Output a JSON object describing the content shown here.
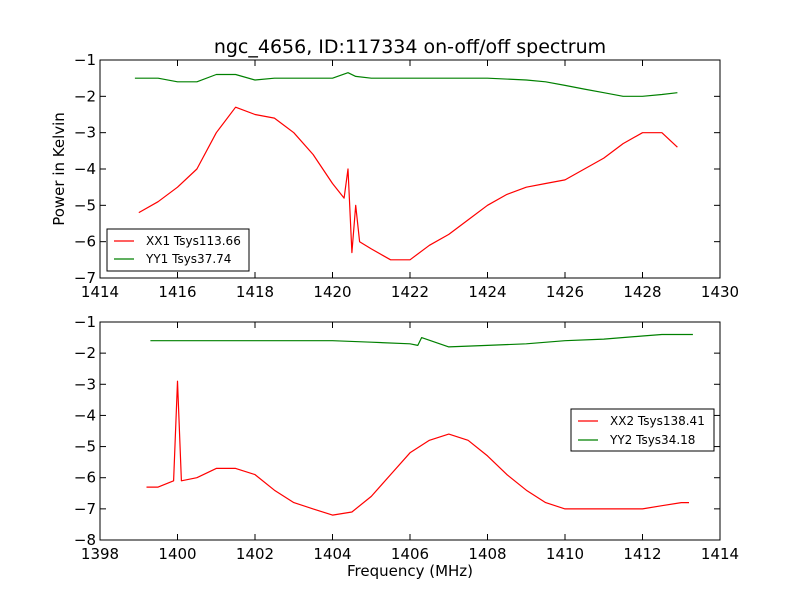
{
  "chart_data": [
    {
      "type": "line",
      "title": "ngc_4656, ID:117334 on-off/off spectrum",
      "xlabel": "",
      "ylabel": "Power in Kelvin",
      "xlim": [
        1414,
        1430
      ],
      "ylim": [
        -7,
        -1
      ],
      "xticks": [
        1414,
        1416,
        1418,
        1420,
        1422,
        1424,
        1426,
        1428,
        1430
      ],
      "yticks": [
        -7,
        -6,
        -5,
        -4,
        -3,
        -2,
        -1
      ],
      "grid": false,
      "legend_position": "lower-left",
      "series": [
        {
          "name": "XX1 Tsys113.66",
          "color": "#ff0000",
          "x": [
            1415.0,
            1415.5,
            1416.0,
            1416.5,
            1417.0,
            1417.5,
            1418.0,
            1418.5,
            1419.0,
            1419.5,
            1420.0,
            1420.3,
            1420.4,
            1420.5,
            1420.6,
            1420.7,
            1421.0,
            1421.5,
            1422.0,
            1422.5,
            1423.0,
            1423.5,
            1424.0,
            1424.5,
            1425.0,
            1425.5,
            1426.0,
            1426.5,
            1427.0,
            1427.5,
            1428.0,
            1428.5,
            1428.9
          ],
          "y": [
            -5.2,
            -4.9,
            -4.5,
            -4.0,
            -3.0,
            -2.3,
            -2.5,
            -2.6,
            -3.0,
            -3.6,
            -4.4,
            -4.8,
            -4.0,
            -6.3,
            -5.0,
            -6.0,
            -6.2,
            -6.5,
            -6.5,
            -6.1,
            -5.8,
            -5.4,
            -5.0,
            -4.7,
            -4.5,
            -4.4,
            -4.3,
            -4.0,
            -3.7,
            -3.3,
            -3.0,
            -3.0,
            -3.4
          ]
        },
        {
          "name": "YY1 Tsys37.74",
          "color": "#008000",
          "x": [
            1414.9,
            1415.5,
            1416.0,
            1416.5,
            1417.0,
            1417.5,
            1418.0,
            1418.5,
            1419.0,
            1419.5,
            1420.0,
            1420.4,
            1420.6,
            1421.0,
            1422.0,
            1423.0,
            1424.0,
            1425.0,
            1425.5,
            1426.0,
            1426.5,
            1427.0,
            1427.5,
            1428.0,
            1428.5,
            1428.9
          ],
          "y": [
            -1.5,
            -1.5,
            -1.6,
            -1.6,
            -1.4,
            -1.4,
            -1.55,
            -1.5,
            -1.5,
            -1.5,
            -1.5,
            -1.35,
            -1.45,
            -1.5,
            -1.5,
            -1.5,
            -1.5,
            -1.55,
            -1.6,
            -1.7,
            -1.8,
            -1.9,
            -2.0,
            -2.0,
            -1.95,
            -1.9
          ]
        }
      ]
    },
    {
      "type": "line",
      "title": "",
      "xlabel": "Frequency (MHz)",
      "ylabel": "",
      "xlim": [
        1398,
        1414
      ],
      "ylim": [
        -8,
        -1
      ],
      "xticks": [
        1398,
        1400,
        1402,
        1404,
        1406,
        1408,
        1410,
        1412,
        1414
      ],
      "yticks": [
        -8,
        -7,
        -6,
        -5,
        -4,
        -3,
        -2,
        -1
      ],
      "grid": false,
      "legend_position": "right",
      "series": [
        {
          "name": "XX2 Tsys138.41",
          "color": "#ff0000",
          "x": [
            1399.2,
            1399.5,
            1399.9,
            1400.0,
            1400.1,
            1400.5,
            1401.0,
            1401.5,
            1402.0,
            1402.5,
            1403.0,
            1403.5,
            1404.0,
            1404.5,
            1405.0,
            1405.5,
            1406.0,
            1406.5,
            1407.0,
            1407.5,
            1408.0,
            1408.5,
            1409.0,
            1409.5,
            1410.0,
            1410.5,
            1411.0,
            1411.5,
            1412.0,
            1412.5,
            1413.0,
            1413.2
          ],
          "y": [
            -6.3,
            -6.3,
            -6.1,
            -2.9,
            -6.1,
            -6.0,
            -5.7,
            -5.7,
            -5.9,
            -6.4,
            -6.8,
            -7.0,
            -7.2,
            -7.1,
            -6.6,
            -5.9,
            -5.2,
            -4.8,
            -4.6,
            -4.8,
            -5.3,
            -5.9,
            -6.4,
            -6.8,
            -7.0,
            -7.0,
            -7.0,
            -7.0,
            -7.0,
            -6.9,
            -6.8,
            -6.8
          ]
        },
        {
          "name": "YY2 Tsys34.18",
          "color": "#008000",
          "x": [
            1399.3,
            1400.0,
            1401.0,
            1402.0,
            1403.0,
            1404.0,
            1405.0,
            1406.0,
            1406.2,
            1406.3,
            1407.0,
            1408.0,
            1409.0,
            1410.0,
            1411.0,
            1412.0,
            1412.5,
            1413.0,
            1413.3
          ],
          "y": [
            -1.6,
            -1.6,
            -1.6,
            -1.6,
            -1.6,
            -1.6,
            -1.65,
            -1.7,
            -1.75,
            -1.5,
            -1.8,
            -1.75,
            -1.7,
            -1.6,
            -1.55,
            -1.45,
            -1.4,
            -1.4,
            -1.4
          ]
        }
      ]
    }
  ]
}
